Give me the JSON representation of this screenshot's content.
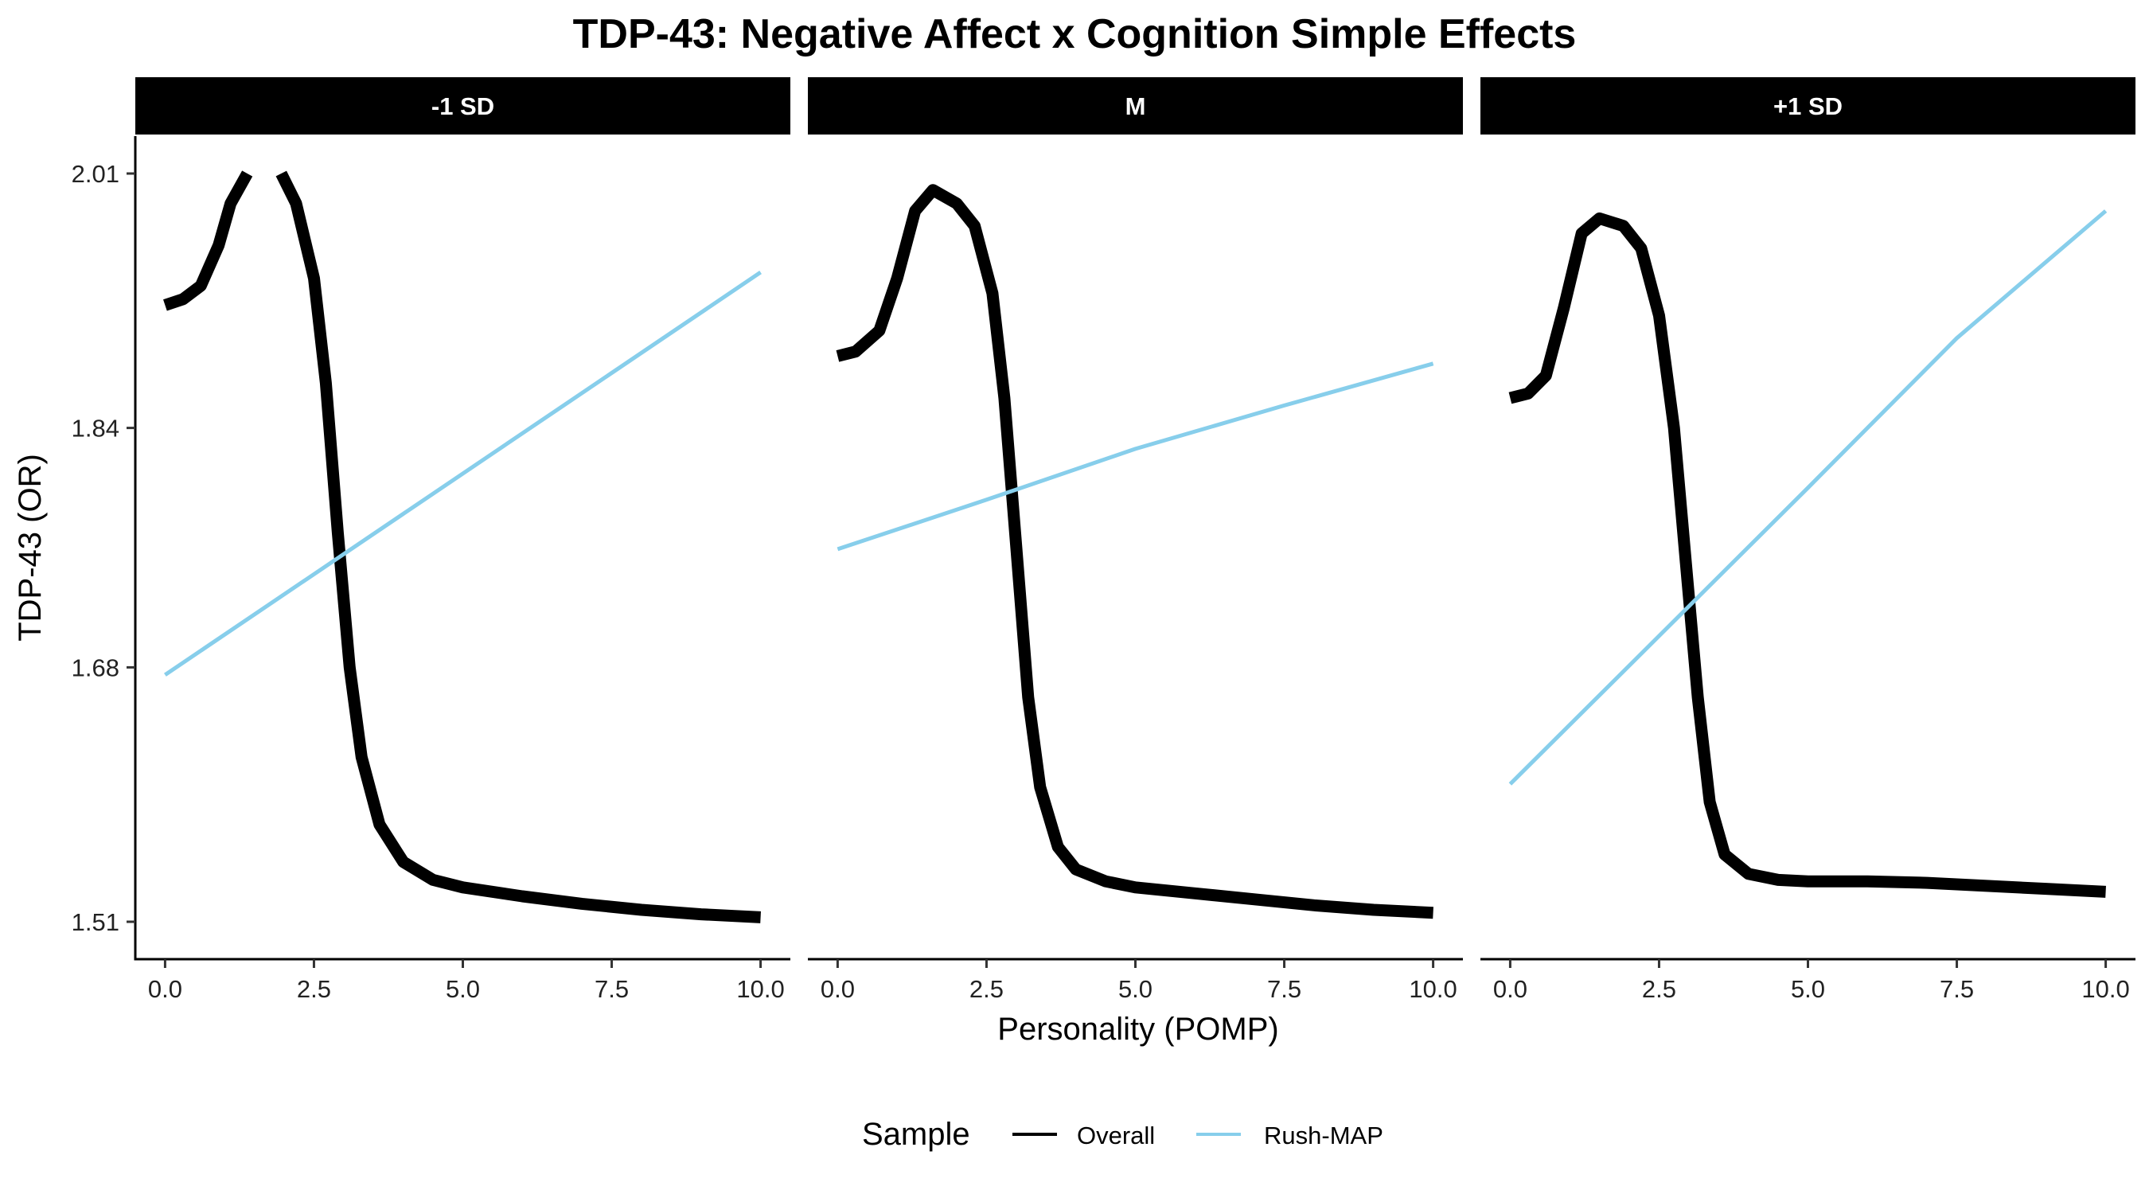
{
  "chart_data": {
    "type": "line",
    "title": "TDP-43: Negative Affect x Cognition Simple Effects",
    "xlabel": "Personality (POMP)",
    "ylabel": "TDP-43 (OR)",
    "xlim": [
      -0.5,
      10.5
    ],
    "ylim": [
      1.485,
      2.035
    ],
    "x_ticks": [
      0,
      2.5,
      5,
      7.5,
      10
    ],
    "x_tick_labels": [
      "0.0",
      "2.5",
      "5.0",
      "7.5",
      "10.0"
    ],
    "y_ticks": [
      1.51,
      1.68,
      1.84,
      2.01
    ],
    "y_tick_labels": [
      "1.51",
      "1.68",
      "1.84",
      "2.01"
    ],
    "grid": false,
    "legend": {
      "title": "Sample",
      "position": "bottom",
      "entries": [
        {
          "name": "Overall",
          "color": "#000000"
        },
        {
          "name": "Rush-MAP",
          "color": "#87CEEB"
        }
      ]
    },
    "panels": [
      {
        "label": "-1 SD",
        "series": [
          {
            "name": "Overall",
            "color": "#000000",
            "segments": [
              [
                [
                  0,
                  1.922
                ],
                [
                  0.3,
                  1.926
                ],
                [
                  0.6,
                  1.935
                ],
                [
                  0.9,
                  1.962
                ],
                [
                  1.1,
                  1.99
                ],
                [
                  1.38,
                  2.01
                ]
              ],
              [
                [
                  1.95,
                  2.01
                ],
                [
                  2.2,
                  1.99
                ],
                [
                  2.5,
                  1.94
                ],
                [
                  2.7,
                  1.87
                ],
                [
                  2.9,
                  1.77
                ],
                [
                  3.1,
                  1.68
                ],
                [
                  3.3,
                  1.62
                ],
                [
                  3.6,
                  1.575
                ],
                [
                  4.0,
                  1.55
                ],
                [
                  4.5,
                  1.538
                ],
                [
                  5.0,
                  1.533
                ],
                [
                  6.0,
                  1.527
                ],
                [
                  7.0,
                  1.522
                ],
                [
                  8.0,
                  1.518
                ],
                [
                  9.0,
                  1.515
                ],
                [
                  10.0,
                  1.513
                ]
              ]
            ]
          },
          {
            "name": "Rush-MAP",
            "color": "#87CEEB",
            "segments": [
              [
                [
                  0,
                  1.675
                ],
                [
                  10.0,
                  1.944
                ]
              ]
            ]
          }
        ]
      },
      {
        "label": "M",
        "series": [
          {
            "name": "Overall",
            "color": "#000000",
            "segments": [
              [
                [
                  0,
                  1.888
                ],
                [
                  0.3,
                  1.891
                ],
                [
                  0.7,
                  1.905
                ],
                [
                  1.0,
                  1.94
                ],
                [
                  1.3,
                  1.985
                ],
                [
                  1.6,
                  1.999
                ],
                [
                  2.0,
                  1.99
                ],
                [
                  2.3,
                  1.975
                ],
                [
                  2.6,
                  1.93
                ],
                [
                  2.8,
                  1.86
                ],
                [
                  3.0,
                  1.76
                ],
                [
                  3.2,
                  1.66
                ],
                [
                  3.4,
                  1.6
                ],
                [
                  3.7,
                  1.56
                ],
                [
                  4.0,
                  1.545
                ],
                [
                  4.5,
                  1.537
                ],
                [
                  5.0,
                  1.533
                ],
                [
                  6.0,
                  1.529
                ],
                [
                  7.0,
                  1.525
                ],
                [
                  8.0,
                  1.521
                ],
                [
                  9.0,
                  1.518
                ],
                [
                  10.0,
                  1.516
                ]
              ]
            ]
          },
          {
            "name": "Rush-MAP",
            "color": "#87CEEB",
            "segments": [
              [
                [
                  0,
                  1.759
                ],
                [
                  2.5,
                  1.792
                ],
                [
                  5.0,
                  1.826
                ],
                [
                  7.5,
                  1.855
                ],
                [
                  10.0,
                  1.883
                ]
              ]
            ]
          }
        ]
      },
      {
        "label": "+1 SD",
        "series": [
          {
            "name": "Overall",
            "color": "#000000",
            "segments": [
              [
                [
                  0,
                  1.86
                ],
                [
                  0.3,
                  1.863
                ],
                [
                  0.6,
                  1.875
                ],
                [
                  0.9,
                  1.92
                ],
                [
                  1.2,
                  1.97
                ],
                [
                  1.5,
                  1.98
                ],
                [
                  1.9,
                  1.975
                ],
                [
                  2.2,
                  1.96
                ],
                [
                  2.5,
                  1.915
                ],
                [
                  2.75,
                  1.84
                ],
                [
                  2.95,
                  1.75
                ],
                [
                  3.15,
                  1.66
                ],
                [
                  3.35,
                  1.59
                ],
                [
                  3.6,
                  1.555
                ],
                [
                  4.0,
                  1.542
                ],
                [
                  4.5,
                  1.538
                ],
                [
                  5.0,
                  1.537
                ],
                [
                  6.0,
                  1.537
                ],
                [
                  7.0,
                  1.536
                ],
                [
                  8.0,
                  1.534
                ],
                [
                  9.0,
                  1.532
                ],
                [
                  10.0,
                  1.53
                ]
              ]
            ]
          },
          {
            "name": "Rush-MAP",
            "color": "#87CEEB",
            "segments": [
              [
                [
                  0,
                  1.602
                ],
                [
                  2.5,
                  1.701
                ],
                [
                  5.0,
                  1.8
                ],
                [
                  7.5,
                  1.9
                ],
                [
                  10.0,
                  1.985
                ]
              ]
            ]
          }
        ]
      }
    ]
  }
}
